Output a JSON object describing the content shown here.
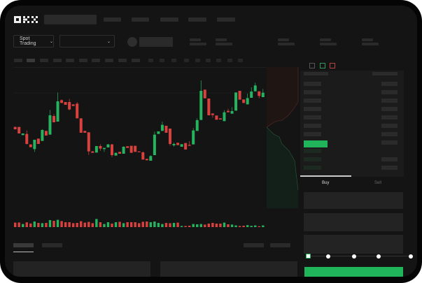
{
  "header": {
    "logo": "OKX"
  },
  "toolbar": {
    "mode_label": "Spot Trading",
    "mode_chevron": "chevron-down-icon",
    "pair_chevron": "chevron-down-icon"
  },
  "order_form": {
    "tabs": [
      {
        "label": "Buy",
        "active": true
      },
      {
        "label": "Sell",
        "active": false
      }
    ],
    "slider_percent": 0,
    "submit_color": "#21b55b"
  },
  "colors": {
    "up": "#26b35f",
    "down": "#d9413f",
    "background": "#141414"
  },
  "chart_data": {
    "type": "candlestick",
    "title": "",
    "grid": false,
    "candles": [
      [
        160,
        162,
        149,
        150
      ],
      [
        160,
        160,
        132,
        132
      ],
      [
        125,
        132,
        125,
        132
      ],
      [
        130,
        145,
        85,
        87
      ],
      [
        85,
        85,
        73,
        73
      ],
      [
        65,
        105,
        53,
        105
      ],
      [
        110,
        110,
        87,
        87
      ],
      [
        100,
        150,
        100,
        147
      ],
      [
        143,
        143,
        123,
        123
      ],
      [
        127,
        233,
        127,
        210
      ],
      [
        207,
        215,
        180,
        180
      ],
      [
        183,
        308,
        183,
        270
      ],
      [
        275,
        278,
        263,
        263
      ],
      [
        267,
        267,
        255,
        255
      ],
      [
        267,
        280,
        232,
        235
      ],
      [
        257,
        257,
        250,
        250
      ],
      [
        260,
        267,
        197,
        197
      ],
      [
        197,
        197,
        135,
        135
      ],
      [
        143,
        143,
        135,
        135
      ],
      [
        137,
        137,
        40,
        55
      ],
      [
        55,
        57,
        49,
        49
      ],
      [
        50,
        78,
        50,
        78
      ],
      [
        78,
        85,
        57,
        67
      ],
      [
        65,
        70,
        53,
        70
      ],
      [
        72,
        87,
        72,
        85
      ],
      [
        85,
        87,
        30,
        39
      ],
      [
        37,
        49,
        37,
        49
      ],
      [
        53,
        53,
        45,
        45
      ],
      [
        45,
        77,
        45,
        75
      ],
      [
        77,
        77,
        70,
        70
      ],
      [
        79,
        79,
        49,
        49
      ],
      [
        79,
        79,
        53,
        53
      ],
      [
        55,
        55,
        52,
        52
      ],
      [
        51,
        55,
        20,
        20
      ],
      [
        23,
        23,
        17,
        17
      ],
      [
        15,
        38,
        15,
        35
      ],
      [
        39,
        140,
        39,
        127
      ],
      [
        130,
        141,
        130,
        141
      ],
      [
        143,
        183,
        143,
        169
      ],
      [
        165,
        165,
        135,
        135
      ],
      [
        153,
        153,
        80,
        87
      ],
      [
        81,
        93,
        75,
        87
      ],
      [
        92,
        92,
        82,
        82
      ],
      [
        75,
        86,
        75,
        86
      ],
      [
        91,
        91,
        63,
        63
      ],
      [
        83,
        99,
        79,
        79
      ],
      [
        85,
        155,
        85,
        145
      ],
      [
        143,
        197,
        143,
        189
      ],
      [
        190,
        360,
        190,
        315
      ],
      [
        320,
        320,
        283,
        283
      ],
      [
        282,
        282,
        210,
        210
      ],
      [
        218,
        218,
        200,
        211
      ],
      [
        209,
        209,
        191,
        191
      ],
      [
        197,
        197,
        192,
        192
      ],
      [
        185,
        232,
        185,
        223
      ],
      [
        229,
        238,
        223,
        223
      ],
      [
        217,
        245,
        217,
        228
      ],
      [
        230,
        308,
        230,
        308
      ],
      [
        315,
        315,
        277,
        277
      ],
      [
        278,
        278,
        263,
        263
      ],
      [
        257,
        303,
        257,
        284
      ],
      [
        285,
        330,
        285,
        312
      ],
      [
        313,
        350,
        313,
        338
      ],
      [
        313,
        313,
        283,
        293
      ],
      [
        288,
        323,
        288,
        307
      ]
    ],
    "volume": [
      32,
      33,
      22,
      34,
      26,
      40,
      30,
      28,
      30,
      50,
      45,
      52,
      43,
      35,
      35,
      28,
      30,
      42,
      32,
      37,
      28,
      58,
      35,
      22,
      35,
      25,
      35,
      38,
      28,
      35,
      35,
      35,
      28,
      38,
      40,
      35,
      40,
      30,
      22,
      30,
      28,
      30,
      32,
      8,
      8,
      10,
      22,
      20,
      22,
      18,
      25,
      30,
      25,
      25,
      32,
      20,
      18,
      12,
      8,
      10,
      14,
      9,
      12,
      6,
      12
    ]
  }
}
